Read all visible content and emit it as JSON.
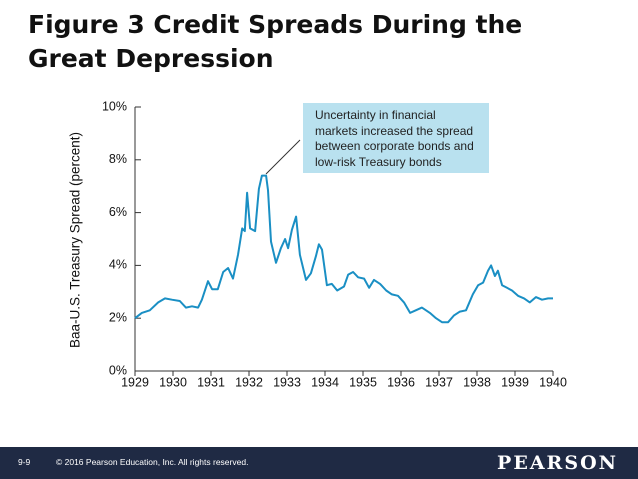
{
  "title": "Figure 3 Credit Spreads During the Great Depression",
  "chart_data": {
    "type": "line",
    "y_label": "Baa-U.S. Treasury Spread (percent)",
    "annotation": {
      "lines": [
        "Uncertainty in financial",
        "markets increased the spread",
        "between corporate bonds and",
        "low-risk Treasury bonds"
      ]
    },
    "color": "#1a8fc4",
    "x": [
      1929.0,
      1929.18,
      1929.39,
      1929.61,
      1929.79,
      1929.97,
      1930.18,
      1930.34,
      1930.5,
      1930.66,
      1930.76,
      1930.92,
      1931.03,
      1931.18,
      1931.32,
      1931.45,
      1931.58,
      1931.71,
      1931.82,
      1931.89,
      1931.95,
      1932.03,
      1932.16,
      1932.26,
      1932.34,
      1932.45,
      1932.5,
      1932.58,
      1932.71,
      1932.84,
      1932.95,
      1933.03,
      1933.13,
      1933.24,
      1933.34,
      1933.5,
      1933.63,
      1933.76,
      1933.84,
      1933.92,
      1934.05,
      1934.18,
      1934.32,
      1934.5,
      1934.61,
      1934.74,
      1934.87,
      1935.03,
      1935.16,
      1935.29,
      1935.45,
      1935.61,
      1935.76,
      1935.92,
      1936.08,
      1936.24,
      1936.39,
      1936.55,
      1936.76,
      1936.92,
      1937.08,
      1937.24,
      1937.39,
      1937.55,
      1937.71,
      1937.89,
      1938.03,
      1938.16,
      1938.29,
      1938.37,
      1938.47,
      1938.55,
      1938.66,
      1938.79,
      1938.92,
      1939.08,
      1939.24,
      1939.39,
      1939.55,
      1939.71,
      1939.87,
      1940.0
    ],
    "values": [
      2.0,
      2.2,
      2.3,
      2.6,
      2.75,
      2.7,
      2.65,
      2.4,
      2.45,
      2.4,
      2.7,
      3.4,
      3.1,
      3.1,
      3.75,
      3.9,
      3.5,
      4.4,
      5.4,
      5.3,
      6.75,
      5.4,
      5.3,
      6.9,
      7.4,
      7.4,
      6.85,
      4.9,
      4.1,
      4.65,
      5.0,
      4.65,
      5.35,
      5.85,
      4.4,
      3.45,
      3.7,
      4.35,
      4.8,
      4.6,
      3.25,
      3.3,
      3.05,
      3.2,
      3.65,
      3.75,
      3.55,
      3.5,
      3.15,
      3.45,
      3.3,
      3.05,
      2.9,
      2.85,
      2.6,
      2.2,
      2.3,
      2.4,
      2.2,
      2.0,
      1.85,
      1.85,
      2.1,
      2.25,
      2.3,
      2.9,
      3.25,
      3.35,
      3.8,
      4.0,
      3.6,
      3.8,
      3.25,
      3.15,
      3.05,
      2.85,
      2.75,
      2.6,
      2.8,
      2.7,
      2.75,
      2.75
    ],
    "xlim": [
      1929,
      1940
    ],
    "xticks": [
      1929,
      1930,
      1931,
      1932,
      1933,
      1934,
      1935,
      1936,
      1937,
      1938,
      1939,
      1940
    ],
    "ylim": [
      0,
      10
    ],
    "yticks": [
      {
        "value": 0,
        "label": "0%"
      },
      {
        "value": 2,
        "label": "2%"
      },
      {
        "value": 4,
        "label": "4%"
      },
      {
        "value": 6,
        "label": "6%"
      },
      {
        "value": 8,
        "label": "8%"
      },
      {
        "value": 10,
        "label": "10%"
      }
    ]
  },
  "footer": {
    "slide_number": "9-9",
    "copyright": "© 2016 Pearson Education, Inc. All rights reserved.",
    "logo": "PEARSON"
  }
}
